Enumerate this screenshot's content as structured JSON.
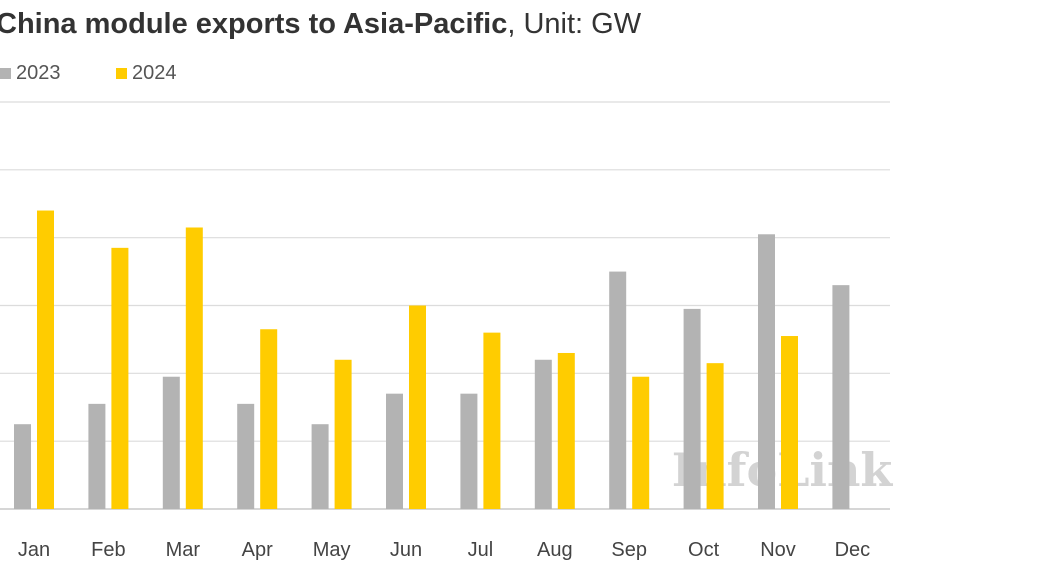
{
  "title_bold": "China module exports to Asia-Pacific",
  "title_rest": ", Unit: GW",
  "watermark": "InfoLink",
  "colors": {
    "2023": "#b3b3b3",
    "2024": "#ffcc00",
    "grid": "#dcdcdc",
    "axis": "#c8c8c8"
  },
  "chart_data": {
    "type": "bar",
    "title": "China module exports to Asia-Pacific, Unit: GW",
    "categories": [
      "Jan",
      "Feb",
      "Mar",
      "Apr",
      "May",
      "Jun",
      "Jul",
      "Aug",
      "Sep",
      "Oct",
      "Nov",
      "Dec"
    ],
    "series": [
      {
        "name": "2023",
        "values": [
          1.25,
          1.55,
          1.95,
          1.55,
          1.25,
          1.7,
          1.7,
          2.2,
          3.5,
          2.95,
          4.05,
          3.3
        ]
      },
      {
        "name": "2024",
        "values": [
          4.4,
          3.85,
          4.15,
          2.65,
          2.2,
          3.0,
          2.6,
          2.3,
          1.95,
          2.15,
          2.55,
          null
        ]
      }
    ],
    "ylim": [
      0,
      6
    ],
    "grid": true,
    "legend_position": "top-left"
  }
}
